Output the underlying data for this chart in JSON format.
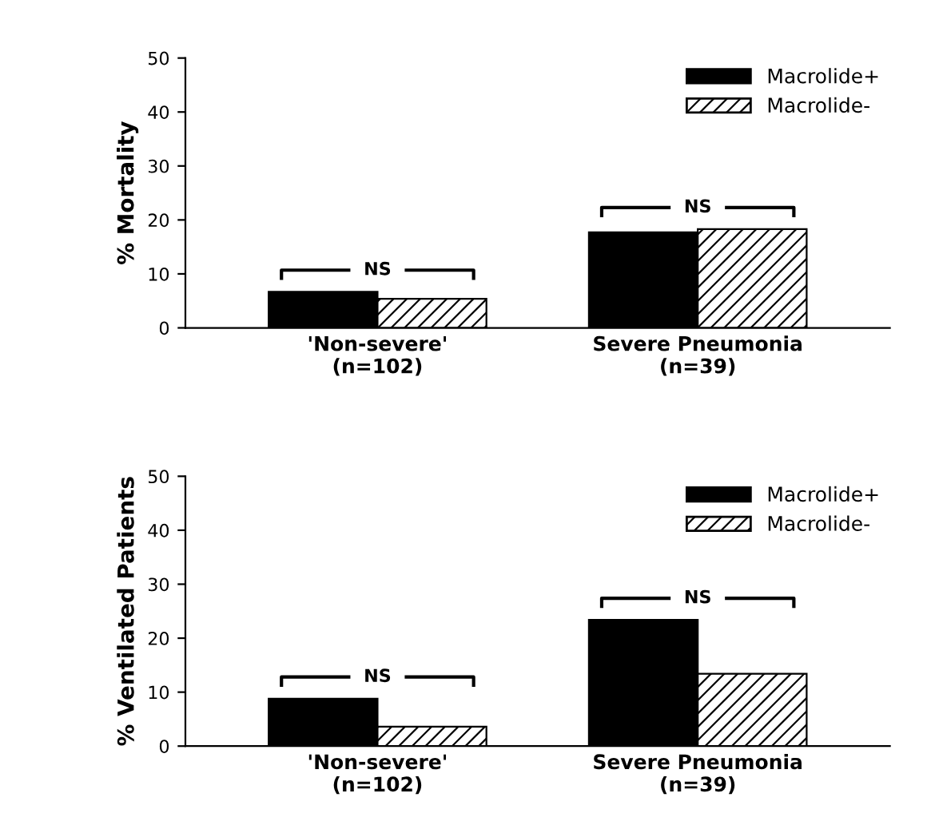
{
  "chart_data": [
    {
      "type": "bar",
      "ylabel": "% Mortality",
      "categories": [
        "'Non-severe'\n(n=102)",
        "Severe Pneumonia\n(n=39)"
      ],
      "series": [
        {
          "name": "Macrolide+",
          "color": "#000000",
          "values": [
            6.7,
            17.7
          ]
        },
        {
          "name": "Macrolide-",
          "color": "#000000",
          "values": [
            5.4,
            18.3
          ]
        }
      ],
      "ylim": [
        0,
        50
      ],
      "yticks": [
        0,
        10,
        20,
        30,
        40,
        50
      ],
      "legend": "top right",
      "grid": false,
      "annotations": [
        "NS",
        "NS"
      ]
    },
    {
      "type": "bar",
      "ylabel": "% Ventilated Patients",
      "categories": [
        "'Non-severe'\n(n=102)",
        "Severe Pneumonia\n(n=39)"
      ],
      "series": [
        {
          "name": "Macrolide+",
          "color": "#000000",
          "values": [
            8.8,
            23.4
          ]
        },
        {
          "name": "Macrolide-",
          "color": "#000000",
          "values": [
            3.6,
            13.4
          ]
        }
      ],
      "ylim": [
        0,
        50
      ],
      "yticks": [
        0,
        10,
        20,
        30,
        40,
        50
      ],
      "legend": "top right",
      "grid": false,
      "annotations": [
        "NS",
        "NS"
      ]
    }
  ]
}
